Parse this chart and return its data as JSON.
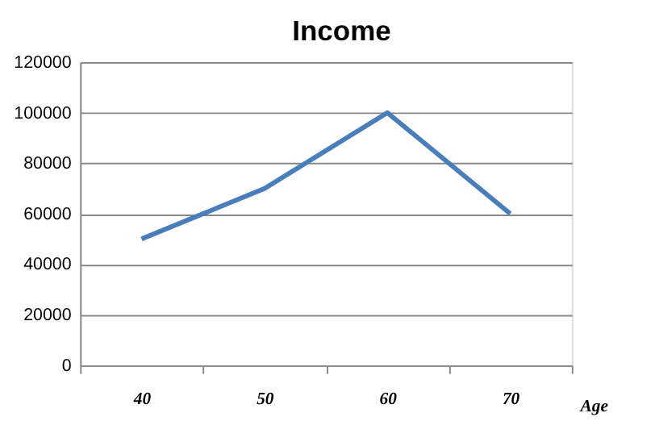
{
  "chart_data": {
    "type": "line",
    "title": "Income",
    "xlabel": "Age",
    "categories": [
      "40",
      "50",
      "60",
      "70"
    ],
    "series": [
      {
        "color": "#4a7ebb",
        "values": [
          50000,
          70000,
          100000,
          60000
        ]
      }
    ],
    "ylim": [
      0,
      120000
    ],
    "yticks": [
      0,
      20000,
      40000,
      60000,
      80000,
      100000,
      120000
    ],
    "grid": "y",
    "legend": false,
    "marker": "none",
    "line_style": "solid"
  }
}
